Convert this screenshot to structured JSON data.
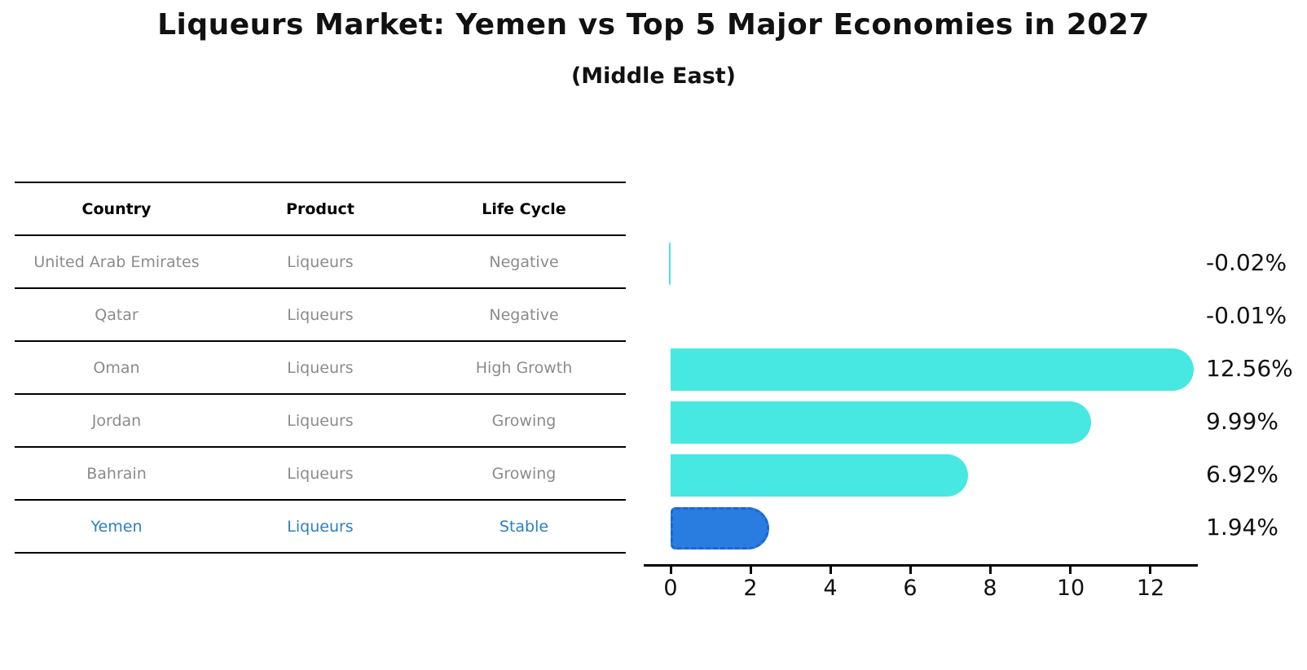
{
  "header": {
    "title": "Liqueurs Market: Yemen vs Top 5 Major Economies in 2027",
    "subtitle": "(Middle East)"
  },
  "table": {
    "columns": [
      "Country",
      "Product",
      "Life Cycle"
    ],
    "rows": [
      {
        "country": "United Arab Emirates",
        "product": "Liqueurs",
        "life_cycle": "Negative"
      },
      {
        "country": "Qatar",
        "product": "Liqueurs",
        "life_cycle": "Negative"
      },
      {
        "country": "Oman",
        "product": "Liqueurs",
        "life_cycle": "High Growth"
      },
      {
        "country": "Jordan",
        "product": "Liqueurs",
        "life_cycle": "Growing"
      },
      {
        "country": "Bahrain",
        "product": "Liqueurs",
        "life_cycle": "Growing"
      },
      {
        "country": "Yemen",
        "product": "Liqueurs",
        "life_cycle": "Stable"
      }
    ]
  },
  "chart_data": {
    "type": "bar",
    "orientation": "horizontal",
    "title": "Liqueurs Market: Yemen vs Top 5 Major Economies in 2027 (Middle East)",
    "categories": [
      "United Arab Emirates",
      "Qatar",
      "Oman",
      "Jordan",
      "Bahrain",
      "Yemen"
    ],
    "values": [
      -0.02,
      -0.01,
      12.56,
      9.99,
      6.92,
      1.94
    ],
    "value_labels": [
      "-0.02%",
      "-0.01%",
      "12.56%",
      "9.99%",
      "6.92%",
      "1.94%"
    ],
    "x_ticks": [
      0,
      2,
      4,
      6,
      8,
      10,
      12
    ],
    "xlim": [
      -0.67,
      13.2
    ],
    "grid": false,
    "legend": false,
    "highlight_index": 5,
    "highlight_category": "Yemen",
    "colors": {
      "bar": "#46e8e1",
      "highlight_bar": "#2a7de0",
      "highlight_border": "#1b66d2",
      "axis": "#000000",
      "row_text": "#8b8b8b",
      "highlight_text": "#2b7fc4"
    }
  }
}
